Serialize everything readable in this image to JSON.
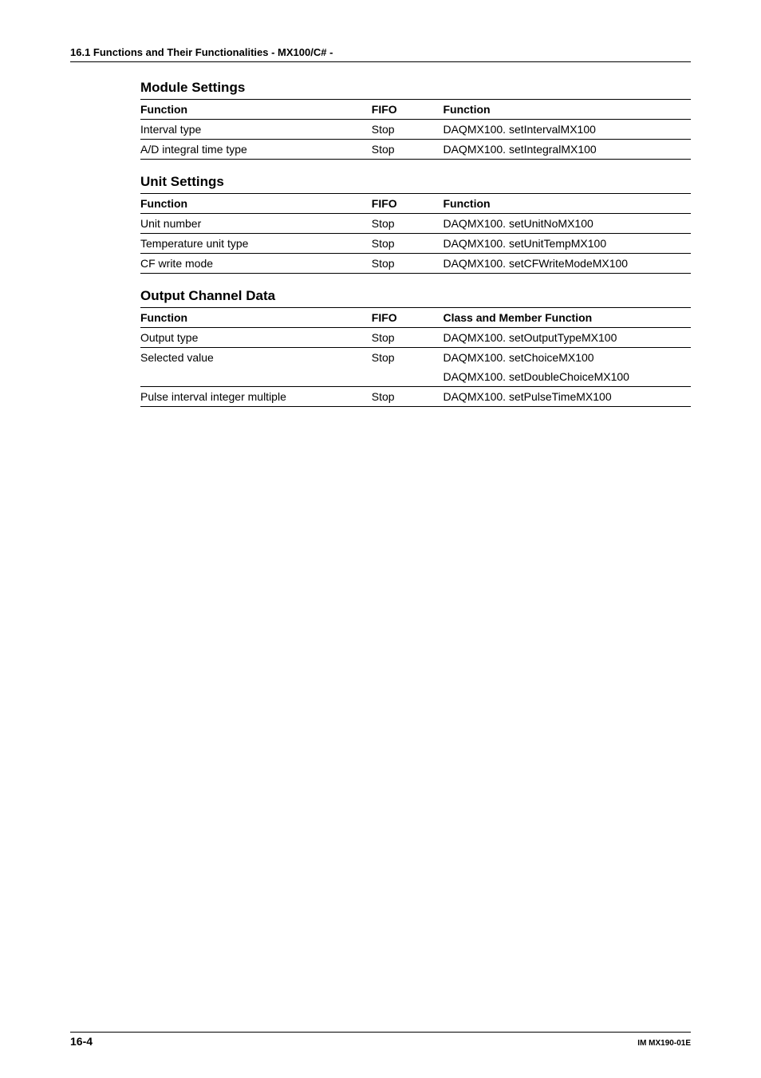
{
  "header": {
    "running": "16.1  Functions and Their Functionalities - MX100/C# -"
  },
  "sections": [
    {
      "title": "Module Settings",
      "headers": [
        "Function",
        "FIFO",
        "Function"
      ],
      "rows": [
        {
          "cells": [
            "Interval type",
            "Stop",
            "DAQMX100. setIntervalMX100"
          ],
          "last": true
        },
        {
          "cells": [
            "A/D integral time type",
            "Stop",
            "DAQMX100. setIntegralMX100"
          ],
          "last": true
        }
      ]
    },
    {
      "title": "Unit Settings",
      "headers": [
        "Function",
        "FIFO",
        "Function"
      ],
      "rows": [
        {
          "cells": [
            "Unit number",
            "Stop",
            "DAQMX100. setUnitNoMX100"
          ],
          "last": true
        },
        {
          "cells": [
            "Temperature unit type",
            "Stop",
            "DAQMX100. setUnitTempMX100"
          ],
          "last": true
        },
        {
          "cells": [
            "CF write mode",
            "Stop",
            "DAQMX100. setCFWriteModeMX100"
          ],
          "last": true
        }
      ]
    },
    {
      "title": "Output Channel Data",
      "headers": [
        "Function",
        "FIFO",
        "Class and Member Function"
      ],
      "rows": [
        {
          "cells": [
            "Output type",
            "Stop",
            "DAQMX100. setOutputTypeMX100"
          ],
          "last": true
        },
        {
          "cells": [
            "Selected value",
            "Stop",
            "DAQMX100. setChoiceMX100"
          ],
          "last": false
        },
        {
          "cells": [
            "",
            "",
            "DAQMX100. setDoubleChoiceMX100"
          ],
          "last": true
        },
        {
          "cells": [
            "Pulse interval integer multiple",
            "Stop",
            "DAQMX100. setPulseTimeMX100"
          ],
          "last": true
        }
      ]
    }
  ],
  "footer": {
    "page": "16-4",
    "docId": "IM MX190-01E"
  }
}
